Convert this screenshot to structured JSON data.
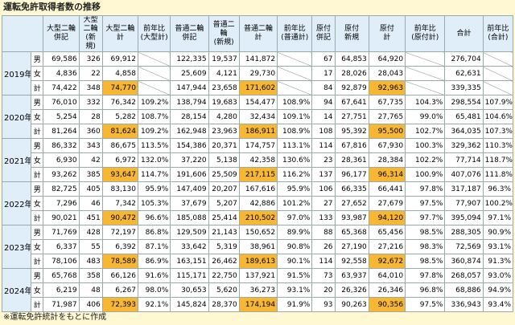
{
  "title": "運転免許取得者数の推移",
  "header": {
    "columns": [
      "大型二輪\n併記",
      "大型二輪\n(新規)",
      "大型二輪\n計",
      "前年比\n(大型計)",
      "普通二輪\n併記",
      "普通二輪\n(新規)",
      "普通二輪\n計",
      "前年比\n(普通計)",
      "原付\n併記",
      "原付\n新規",
      "原付\n計",
      "前年比\n(原付計)",
      "合計",
      "前年比\n(合計)"
    ]
  },
  "years": [
    {
      "label": "2019年",
      "rows": [
        {
          "label": "男",
          "cells": [
            "69,586",
            "326",
            "69,912",
            null,
            "122,335",
            "19,537",
            "141,872",
            null,
            "67",
            "64,853",
            "64,920",
            null,
            "276,704",
            null
          ]
        },
        {
          "label": "女",
          "cells": [
            "4,836",
            "22",
            "4,858",
            null,
            "25,609",
            "4,121",
            "29,730",
            null,
            "17",
            "28,026",
            "28,043",
            null,
            "62,631",
            null
          ]
        },
        {
          "label": "計",
          "cells": [
            "74,422",
            "348",
            "74,770",
            null,
            "147,944",
            "23,658",
            "171,602",
            null,
            "84",
            "92,879",
            "92,963",
            null,
            "339,335",
            null
          ]
        }
      ]
    },
    {
      "label": "2020年",
      "rows": [
        {
          "label": "男",
          "cells": [
            "76,010",
            "332",
            "76,342",
            "109.2%",
            "138,794",
            "19,683",
            "154,477",
            "108.9%",
            "94",
            "67,641",
            "67,735",
            "104.3%",
            "298,554",
            "107.9%"
          ]
        },
        {
          "label": "女",
          "cells": [
            "5,254",
            "28",
            "5,282",
            "108.7%",
            "28,154",
            "4,280",
            "32,434",
            "109.1%",
            "14",
            "27,751",
            "27,765",
            "99.0%",
            "65,481",
            "104.6%"
          ]
        },
        {
          "label": "計",
          "cells": [
            "81,264",
            "360",
            "81,624",
            "109.2%",
            "162,948",
            "23,963",
            "186,911",
            "108.9%",
            "108",
            "95,392",
            "95,500",
            "102.7%",
            "364,035",
            "107.3%"
          ]
        }
      ]
    },
    {
      "label": "2021年",
      "rows": [
        {
          "label": "男",
          "cells": [
            "86,332",
            "343",
            "86,675",
            "113.5%",
            "154,386",
            "20,371",
            "174,757",
            "113.1%",
            "114",
            "67,816",
            "67,930",
            "100.3%",
            "329,362",
            "110.3%"
          ]
        },
        {
          "label": "女",
          "cells": [
            "6,930",
            "42",
            "6,972",
            "132.0%",
            "37,220",
            "5,138",
            "42,358",
            "130.6%",
            "23",
            "28,361",
            "28,384",
            "102.2%",
            "77,714",
            "118.7%"
          ]
        },
        {
          "label": "計",
          "cells": [
            "93,262",
            "385",
            "93,647",
            "114.7%",
            "191,606",
            "25,509",
            "217,115",
            "116.2%",
            "137",
            "96,177",
            "96,314",
            "100.9%",
            "407,076",
            "111.8%"
          ]
        }
      ]
    },
    {
      "label": "2022年",
      "rows": [
        {
          "label": "男",
          "cells": [
            "82,725",
            "405",
            "83,130",
            "95.9%",
            "147,409",
            "20,207",
            "167,616",
            "95.9%",
            "106",
            "66,335",
            "66,441",
            "97.8%",
            "317,187",
            "96.3%"
          ]
        },
        {
          "label": "女",
          "cells": [
            "7,296",
            "46",
            "7,342",
            "105.3%",
            "37,679",
            "5,207",
            "42,886",
            "101.2%",
            "27",
            "27,652",
            "27,679",
            "97.5%",
            "77,907",
            "100.2%"
          ]
        },
        {
          "label": "計",
          "cells": [
            "90,021",
            "451",
            "90,472",
            "96.6%",
            "185,088",
            "25,414",
            "210,502",
            "97.0%",
            "133",
            "93,987",
            "94,120",
            "97.7%",
            "395,094",
            "97.1%"
          ]
        }
      ]
    },
    {
      "label": "2023年",
      "rows": [
        {
          "label": "男",
          "cells": [
            "71,769",
            "428",
            "72,197",
            "86.8%",
            "129,509",
            "21,143",
            "150,652",
            "89.9%",
            "88",
            "65,368",
            "65,456",
            "98.5%",
            "288,305",
            "90.9%"
          ]
        },
        {
          "label": "女",
          "cells": [
            "6,337",
            "55",
            "6,392",
            "87.1%",
            "33,642",
            "5,319",
            "38,961",
            "90.8%",
            "26",
            "27,190",
            "27,216",
            "98.3%",
            "72,569",
            "93.1%"
          ]
        },
        {
          "label": "計",
          "cells": [
            "78,106",
            "483",
            "78,589",
            "86.9%",
            "163,151",
            "26,462",
            "189,613",
            "90.1%",
            "114",
            "92,558",
            "92,672",
            "98.5%",
            "360,874",
            "91.3%"
          ]
        }
      ]
    },
    {
      "label": "2024年",
      "rows": [
        {
          "label": "男",
          "cells": [
            "65,768",
            "358",
            "66,126",
            "91.6%",
            "115,171",
            "22,750",
            "137,921",
            "91.5%",
            "73",
            "63,937",
            "64,010",
            "97.8%",
            "268,057",
            "93.0%"
          ]
        },
        {
          "label": "女",
          "cells": [
            "6,219",
            "48",
            "6,267",
            "98.0%",
            "30,653",
            "5,620",
            "36,273",
            "93.1%",
            "20",
            "26,326",
            "26,346",
            "96.8%",
            "68,886",
            "94.9%"
          ]
        },
        {
          "label": "計",
          "cells": [
            "71,987",
            "406",
            "72,393",
            "92.1%",
            "145,824",
            "28,370",
            "174,194",
            "91.9%",
            "93",
            "90,263",
            "90,356",
            "97.5%",
            "336,943",
            "93.4%"
          ]
        }
      ]
    }
  ],
  "note": "※運転免許統計をもとに作成"
}
